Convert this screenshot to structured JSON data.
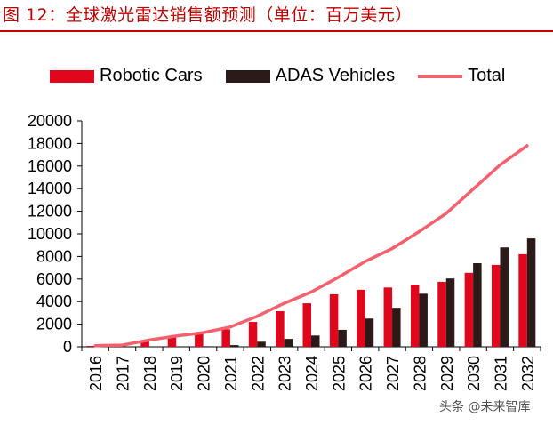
{
  "title": "图 12：全球激光雷达销售额预测（单位：百万美元）",
  "watermark": "头条 @未来智库",
  "colors": {
    "title": "#c00000",
    "robotic_cars": "#e0061b",
    "adas": "#2b1a17",
    "total": "#f4606c"
  },
  "chart_data": {
    "type": "bar",
    "categories": [
      "2016",
      "2017",
      "2018",
      "2019",
      "2020",
      "2021",
      "2022",
      "2023",
      "2024",
      "2025",
      "2026",
      "2027",
      "2028",
      "2029",
      "2030",
      "2031",
      "2032"
    ],
    "series": [
      {
        "name": "Robotic Cars",
        "type": "bar",
        "values": [
          80,
          150,
          550,
          850,
          1150,
          1550,
          2200,
          3150,
          3850,
          4650,
          5050,
          5250,
          5500,
          5750,
          6550,
          7250,
          8200
        ]
      },
      {
        "name": "ADAS Vehicles",
        "type": "bar",
        "values": [
          0,
          0,
          0,
          0,
          50,
          150,
          450,
          700,
          1000,
          1500,
          2500,
          3450,
          4700,
          6050,
          7400,
          8800,
          9600
        ]
      },
      {
        "name": "Total",
        "type": "line",
        "values": [
          100,
          150,
          600,
          950,
          1250,
          1750,
          2700,
          3850,
          4850,
          6150,
          7550,
          8700,
          10200,
          11800,
          13950,
          16100,
          17800
        ]
      }
    ],
    "ylim": [
      0,
      20000
    ],
    "yticks": [
      0,
      2000,
      4000,
      6000,
      8000,
      10000,
      12000,
      14000,
      16000,
      18000,
      20000
    ],
    "legend_position": "top",
    "grid": false
  }
}
